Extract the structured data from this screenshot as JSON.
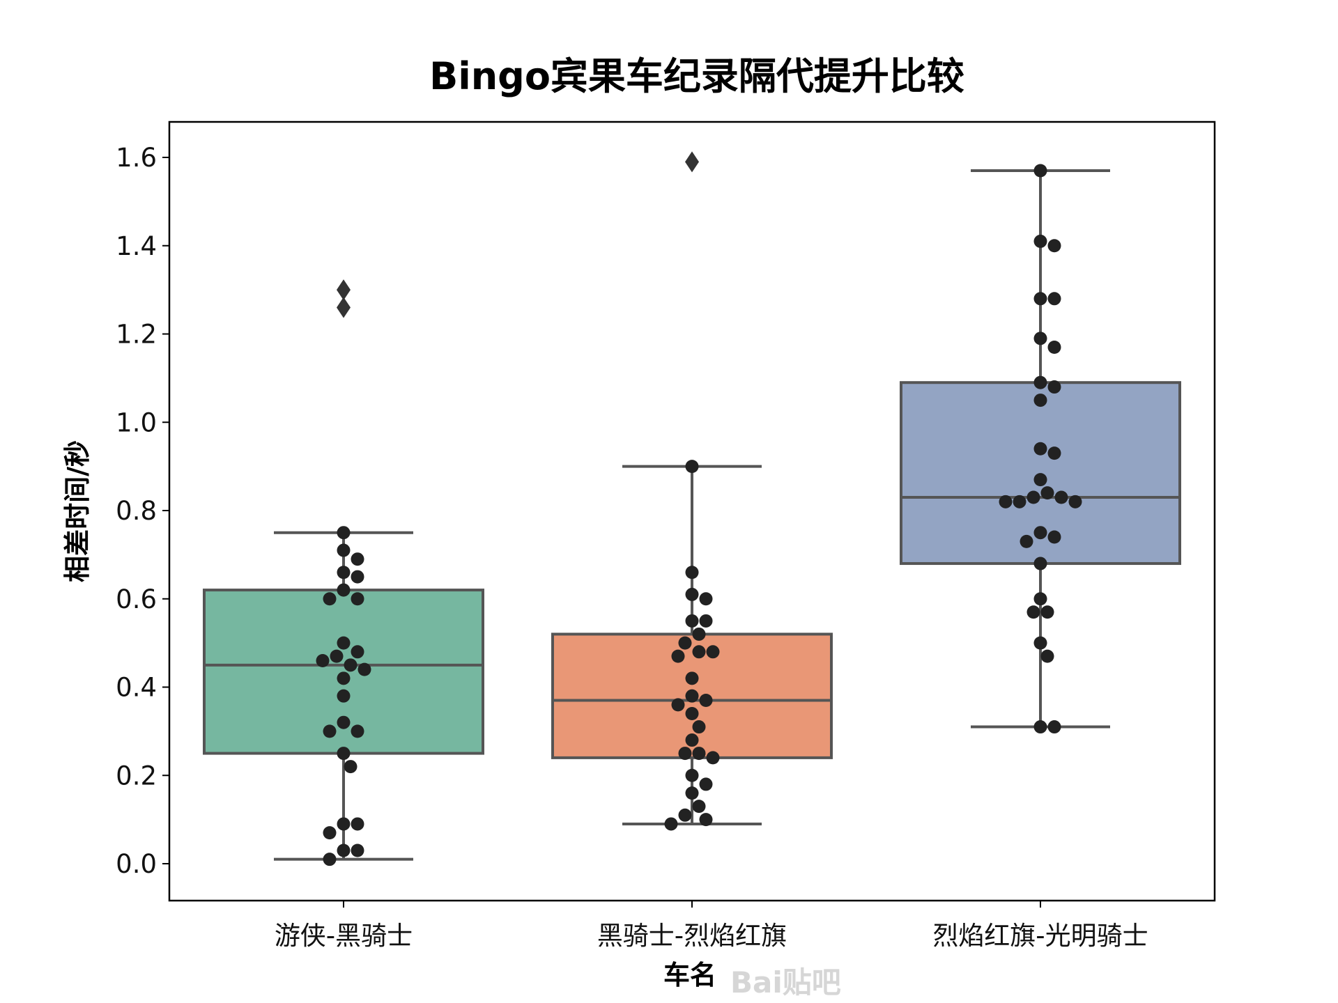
{
  "chart_data": {
    "type": "box",
    "title": "Bingo宾果车纪录隔代提升比较",
    "xlabel": "车名",
    "ylabel": "相差时间/秒",
    "ylim": [
      -0.08,
      1.68
    ],
    "yticks": [
      "0.0",
      "0.2",
      "0.4",
      "0.6",
      "0.8",
      "1.0",
      "1.2",
      "1.4",
      "1.6"
    ],
    "grid": false,
    "categories": [
      "游侠-黑骑士",
      "黑骑士-烈焰红旗",
      "烈焰红旗-光明骑士"
    ],
    "colors": [
      "#76b7a0",
      "#e99776",
      "#93a4c3"
    ],
    "box_stats": [
      {
        "q1": 0.25,
        "median": 0.45,
        "q3": 0.62,
        "whisker_low": 0.01,
        "whisker_high": 0.75,
        "outliers": [
          1.26,
          1.3
        ]
      },
      {
        "q1": 0.24,
        "median": 0.37,
        "q3": 0.52,
        "whisker_low": 0.09,
        "whisker_high": 0.9,
        "outliers": [
          1.59
        ]
      },
      {
        "q1": 0.68,
        "median": 0.83,
        "q3": 1.09,
        "whisker_low": 0.31,
        "whisker_high": 1.57,
        "outliers": []
      }
    ],
    "points": [
      [
        0.75,
        0.71,
        0.69,
        0.66,
        0.65,
        0.62,
        0.6,
        0.6,
        0.5,
        0.48,
        0.47,
        0.46,
        0.45,
        0.44,
        0.42,
        0.38,
        0.32,
        0.3,
        0.3,
        0.25,
        0.22,
        0.09,
        0.09,
        0.07,
        0.03,
        0.03,
        0.01
      ],
      [
        0.9,
        0.66,
        0.61,
        0.6,
        0.55,
        0.55,
        0.52,
        0.5,
        0.48,
        0.48,
        0.47,
        0.42,
        0.38,
        0.37,
        0.36,
        0.34,
        0.31,
        0.28,
        0.25,
        0.25,
        0.24,
        0.2,
        0.18,
        0.16,
        0.13,
        0.11,
        0.1,
        0.09
      ],
      [
        1.57,
        1.41,
        1.4,
        1.28,
        1.28,
        1.19,
        1.17,
        1.09,
        1.08,
        1.05,
        0.94,
        0.93,
        0.87,
        0.84,
        0.83,
        0.83,
        0.82,
        0.82,
        0.82,
        0.75,
        0.74,
        0.73,
        0.68,
        0.6,
        0.57,
        0.57,
        0.5,
        0.47,
        0.31,
        0.31
      ]
    ],
    "box_line_color": "#555555",
    "point_color": "#222222"
  },
  "watermark": "Bai贴吧"
}
